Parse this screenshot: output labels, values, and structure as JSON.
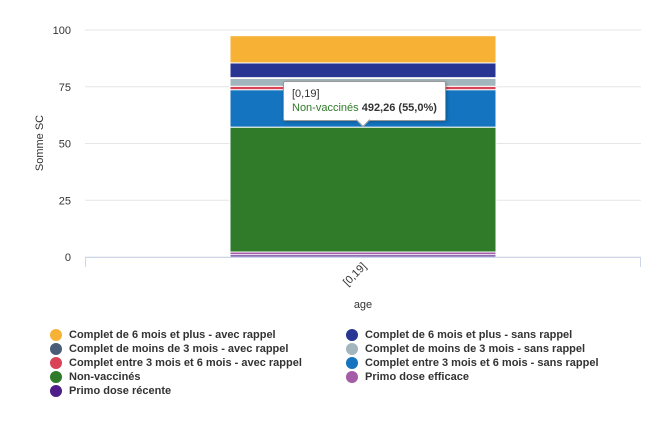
{
  "chart_data": {
    "type": "bar",
    "stacked": true,
    "categories": [
      "[0,19]"
    ],
    "xlabel": "age",
    "ylabel": "Somme SC",
    "ylim": [
      0,
      100
    ],
    "yticks": [
      "0",
      "25",
      "50",
      "75",
      "100"
    ],
    "grid": true,
    "legend_position": "bottom",
    "series": [
      {
        "name": "Complet de 6 mois et plus - avec rappel",
        "color": "#f7b135",
        "values": [
          12.0
        ]
      },
      {
        "name": "Complet de 6 mois et plus - sans rappel",
        "color": "#283593",
        "values": [
          6.5
        ]
      },
      {
        "name": "Complet de moins de 3 mois - avec rappel",
        "color": "#4a5d78",
        "values": [
          0.3
        ]
      },
      {
        "name": "Complet de moins de 3 mois - sans rappel",
        "color": "#a3b6bd",
        "values": [
          3.5
        ]
      },
      {
        "name": "Complet entre 3 mois et 6 mois - avec rappel",
        "color": "#d94355",
        "values": [
          1.5
        ]
      },
      {
        "name": "Complet entre 3 mois et 6 mois - sans rappel",
        "color": "#1474bf",
        "values": [
          16.5
        ]
      },
      {
        "name": "Non-vaccinés",
        "color": "#2f7b29",
        "values": [
          55.0
        ]
      },
      {
        "name": "Primo dose efficace",
        "color": "#a45ca8",
        "values": [
          1.2
        ]
      },
      {
        "name": "Primo dose récente",
        "color": "#4e1e89",
        "values": [
          1.0
        ]
      }
    ],
    "stack_order_bottom_to_top": [
      "Primo dose récente",
      "Primo dose efficace",
      "Non-vaccinés",
      "Complet entre 3 mois et 6 mois - sans rappel",
      "Complet entre 3 mois et 6 mois - avec rappel",
      "Complet de moins de 3 mois - sans rappel",
      "Complet de moins de 3 mois - avec rappel",
      "Complet de 6 mois et plus - sans rappel",
      "Complet de 6 mois et plus - avec rappel"
    ],
    "tooltip": {
      "category": "[0,19]",
      "series": "Non-vaccinés",
      "value": "492,26 (55,0%)"
    }
  }
}
